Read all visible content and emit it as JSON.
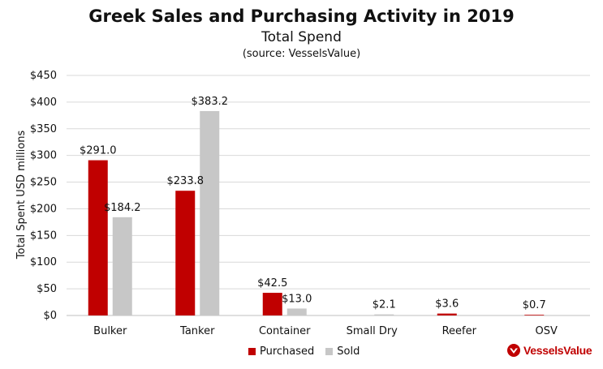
{
  "colors": {
    "purchased": "#c00000",
    "sold": "#c7c7c7",
    "grid": "#d9d9d9",
    "axis": "#bfbfbf",
    "brand": "#c00000"
  },
  "brand": {
    "name": "VesselsValue",
    "icon": "vesselsvalue-logo-icon"
  },
  "chart_data": {
    "type": "bar",
    "title": "Greek Sales and Purchasing Activity in 2019",
    "subtitle": "Total Spend",
    "source": "(source: VesselsValue)",
    "xlabel": "",
    "ylabel": "Total Spent USD millions",
    "ylim": [
      0,
      450
    ],
    "y_ticks": [
      0,
      50,
      100,
      150,
      200,
      250,
      300,
      350,
      400,
      450
    ],
    "y_tick_labels": [
      "$0",
      "$50",
      "$100",
      "$150",
      "$200",
      "$250",
      "$300",
      "$350",
      "$400",
      "$450"
    ],
    "grid": true,
    "legend_position": "bottom",
    "categories": [
      "Bulker",
      "Tanker",
      "Container",
      "Small Dry",
      "Reefer",
      "OSV"
    ],
    "series": [
      {
        "name": "Purchased",
        "values": [
          291.0,
          233.8,
          42.5,
          null,
          3.6,
          0.7
        ],
        "labels": [
          "$291.0",
          "$233.8",
          "$42.5",
          "",
          "$3.6",
          "$0.7"
        ]
      },
      {
        "name": "Sold",
        "values": [
          184.2,
          383.2,
          13.0,
          2.1,
          null,
          null
        ],
        "labels": [
          "$184.2",
          "$383.2",
          "$13.0",
          "$2.1",
          "",
          ""
        ]
      }
    ]
  }
}
